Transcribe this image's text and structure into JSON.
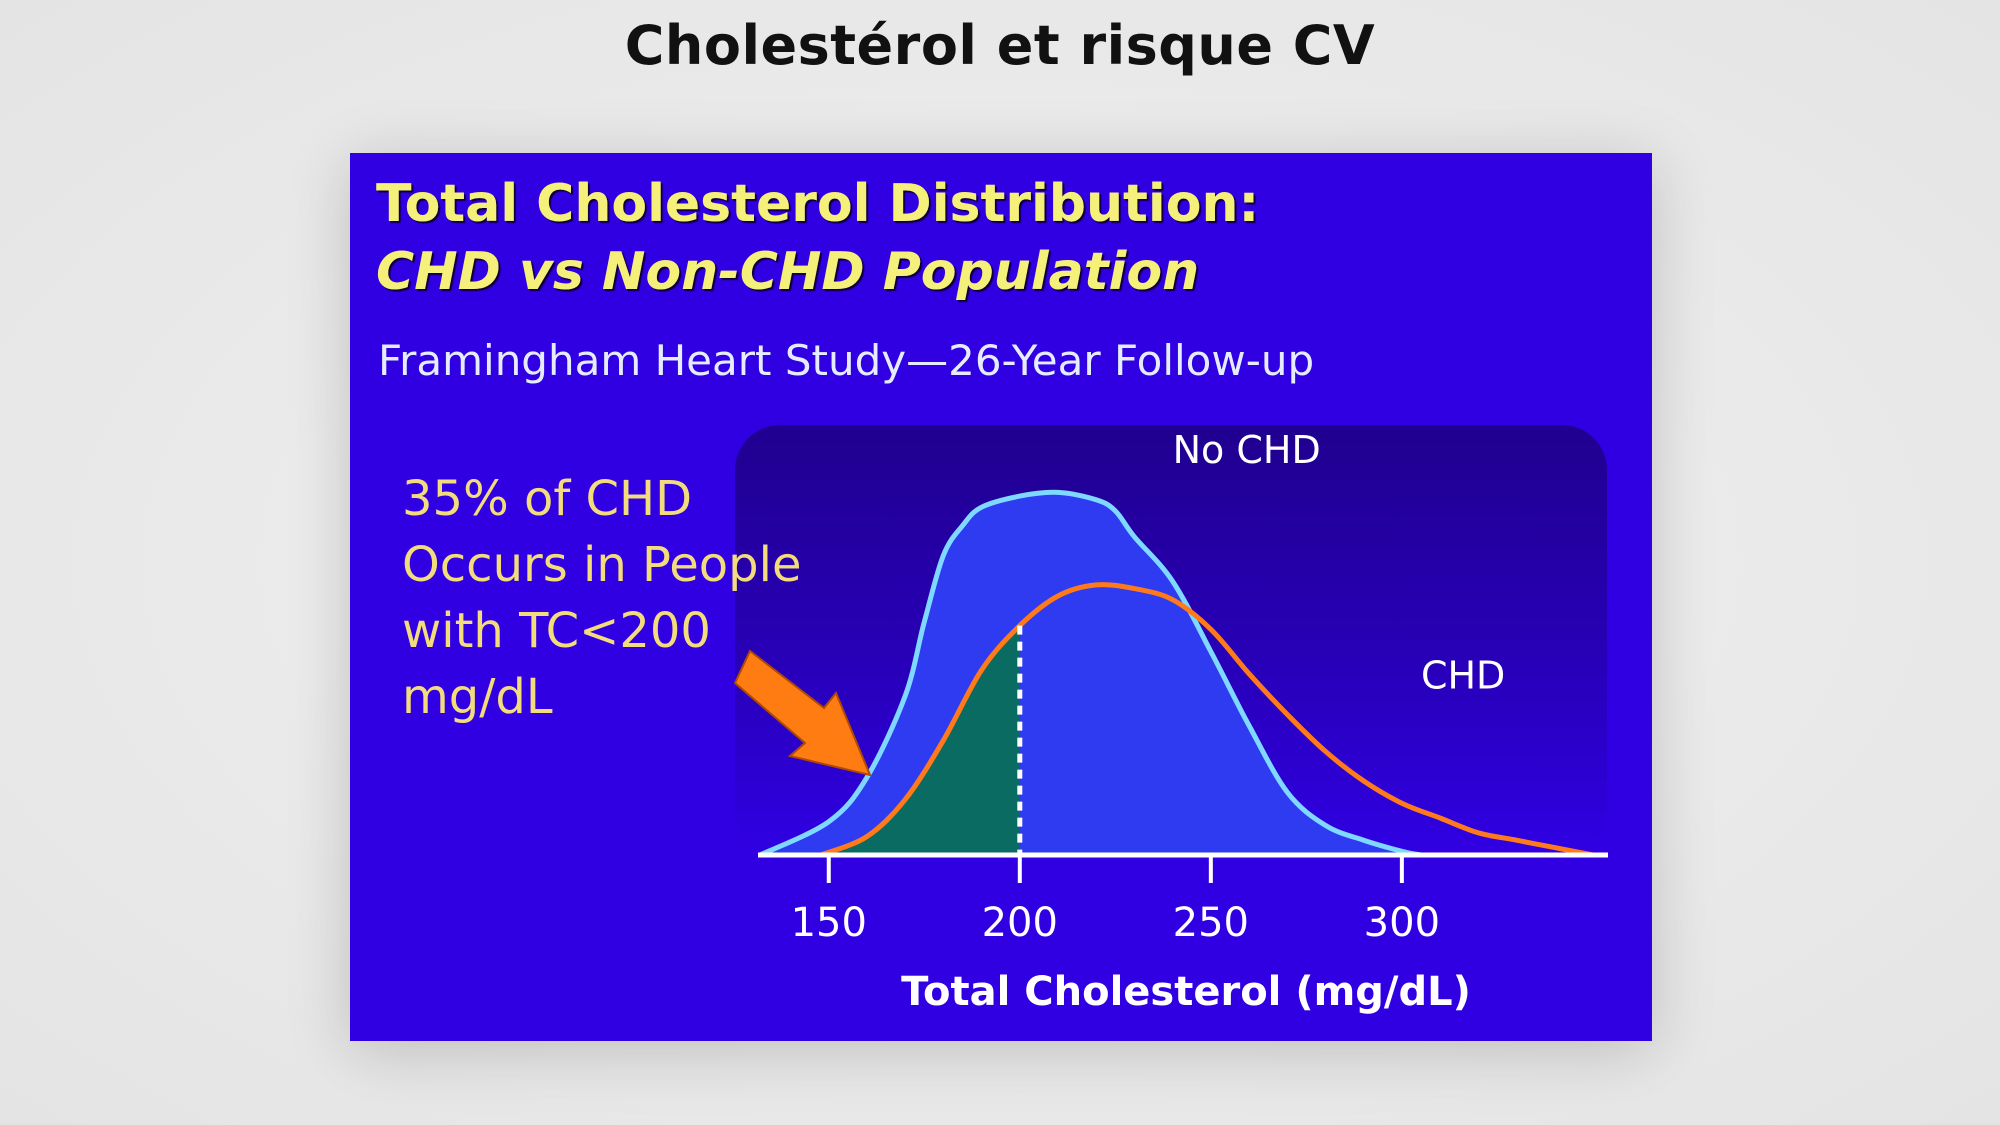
{
  "page": {
    "title": "Cholestérol et risque CV"
  },
  "slide": {
    "title_line1": "Total Cholesterol Distribution:",
    "title_line2": "CHD vs Non-CHD Population",
    "subtitle": "Framingham Heart Study—26-Year Follow-up",
    "annotation_lines": [
      "35% of CHD",
      "Occurs in People",
      "with TC<200",
      "mg/dL"
    ]
  },
  "colors": {
    "slide_bg": "#3000e3",
    "plot_bg_dark": "#24009a",
    "title_yellow": "#f5f07a",
    "annotation_yellow": "#f3dc7c",
    "no_chd_line": "#7fd8ff",
    "no_chd_fill": "#2f3bf0",
    "chd_line": "#ff7a1a",
    "shaded_area": "#0a6b63",
    "arrow": "#ff7c12",
    "axis": "#ffffff"
  },
  "chart_data": {
    "type": "line",
    "title": "Total Cholesterol Distribution: CHD vs Non-CHD Population",
    "subtitle": "Framingham Heart Study—26-Year Follow-up",
    "xlabel": "Total Cholesterol (mg/dL)",
    "ylabel": "",
    "xlim": [
      132,
      355
    ],
    "ylim": [
      0,
      1
    ],
    "xticks": [
      150,
      200,
      250,
      300
    ],
    "series": [
      {
        "name": "No CHD",
        "label_at": {
          "x": 240,
          "y": 1.06
        },
        "points": [
          [
            132,
            0.0
          ],
          [
            150,
            0.09
          ],
          [
            160,
            0.21
          ],
          [
            170,
            0.43
          ],
          [
            175,
            0.63
          ],
          [
            180,
            0.81
          ],
          [
            185,
            0.89
          ],
          [
            190,
            0.94
          ],
          [
            200,
            0.97
          ],
          [
            210,
            0.98
          ],
          [
            220,
            0.96
          ],
          [
            225,
            0.93
          ],
          [
            230,
            0.86
          ],
          [
            240,
            0.74
          ],
          [
            250,
            0.55
          ],
          [
            260,
            0.35
          ],
          [
            270,
            0.17
          ],
          [
            280,
            0.08
          ],
          [
            290,
            0.04
          ],
          [
            300,
            0.01
          ],
          [
            305,
            0.0
          ]
        ]
      },
      {
        "name": "CHD",
        "label_at": {
          "x": 305,
          "y": 0.45
        },
        "points": [
          [
            148,
            0.0
          ],
          [
            160,
            0.05
          ],
          [
            170,
            0.15
          ],
          [
            180,
            0.31
          ],
          [
            190,
            0.5
          ],
          [
            200,
            0.62
          ],
          [
            210,
            0.7
          ],
          [
            220,
            0.73
          ],
          [
            230,
            0.72
          ],
          [
            240,
            0.69
          ],
          [
            250,
            0.61
          ],
          [
            260,
            0.49
          ],
          [
            270,
            0.38
          ],
          [
            280,
            0.28
          ],
          [
            290,
            0.2
          ],
          [
            300,
            0.14
          ],
          [
            310,
            0.1
          ],
          [
            320,
            0.06
          ],
          [
            330,
            0.04
          ],
          [
            340,
            0.02
          ],
          [
            350,
            0.0
          ]
        ]
      }
    ],
    "shaded_region": {
      "series": "CHD",
      "x_from": 148,
      "x_to": 200,
      "percent_of_chd": 35
    },
    "threshold_x": 200,
    "annotation": "35% of CHD Occurs in People with TC<200 mg/dL"
  }
}
